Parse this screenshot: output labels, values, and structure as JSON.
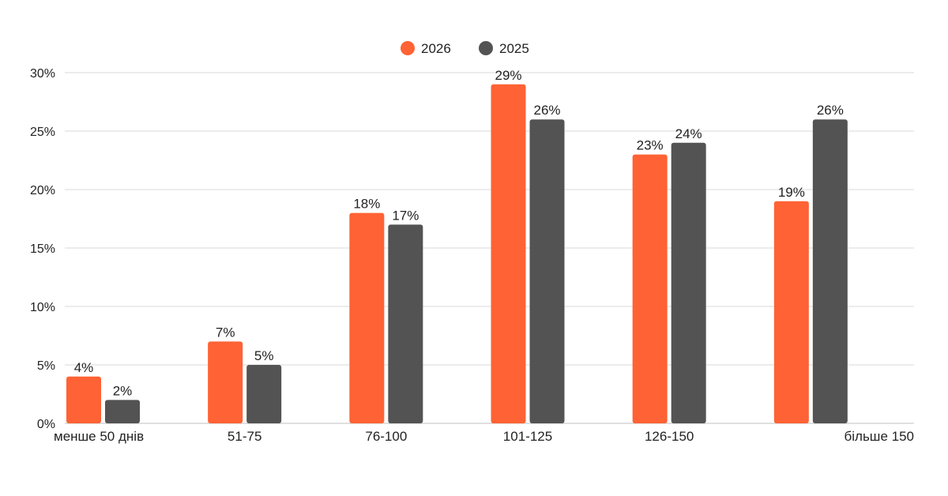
{
  "chart_data": {
    "type": "bar",
    "title": "",
    "xlabel": "",
    "ylabel": "",
    "categories": [
      "менше 50 днів",
      "51-75",
      "76-100",
      "101-125",
      "126-150",
      "більше 150"
    ],
    "series": [
      {
        "name": "2026",
        "color": "#ff6234",
        "values": [
          4,
          7,
          18,
          29,
          23,
          19
        ],
        "labels": [
          "4%",
          "7%",
          "18%",
          "29%",
          "23%",
          "19%"
        ]
      },
      {
        "name": "2025",
        "color": "#535353",
        "values": [
          2,
          5,
          17,
          26,
          24,
          26
        ],
        "labels": [
          "2%",
          "5%",
          "17%",
          "26%",
          "24%",
          "26%"
        ]
      }
    ],
    "ylim": [
      0,
      30
    ],
    "yticks": [
      0,
      5,
      10,
      15,
      20,
      25,
      30
    ],
    "ytick_labels": [
      "0%",
      "5%",
      "10%",
      "15%",
      "20%",
      "25%",
      "30%"
    ],
    "grid": true,
    "legend_position": "top-center"
  }
}
